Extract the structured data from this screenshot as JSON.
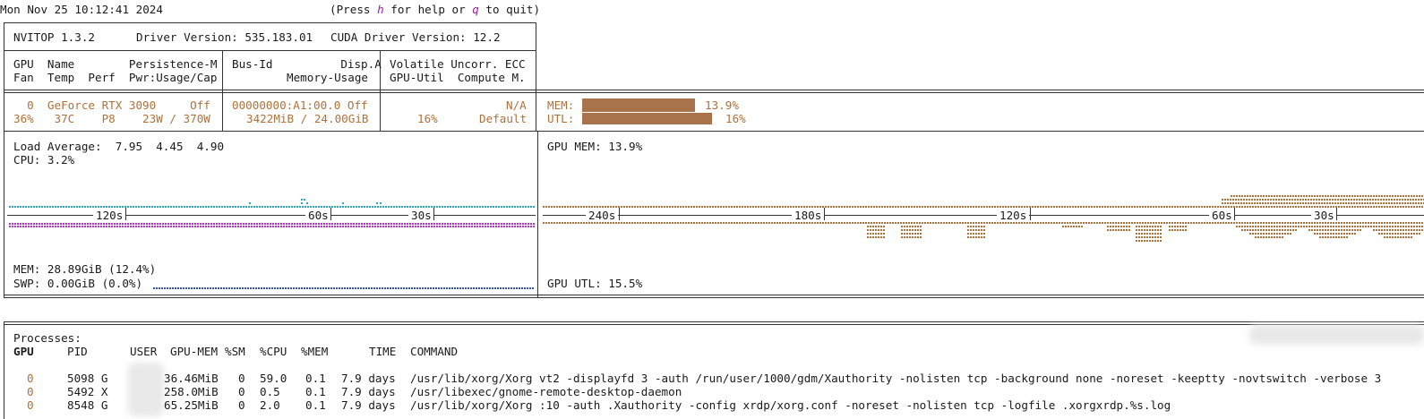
{
  "clock": "Mon Nov 25 10:12:41 2024",
  "help": {
    "pre": "(Press ",
    "h": "h",
    "mid": " for help or ",
    "q": "q",
    "post": " to quit)"
  },
  "header": {
    "app": "NVITOP 1.3.2",
    "driver": "Driver Version: 535.183.01",
    "cuda": "CUDA Driver Version: 12.2"
  },
  "cols": {
    "c1r1": "GPU  Name        Persistence-M",
    "c1r2": "Fan  Temp  Perf  Pwr:Usage/Cap",
    "c2r1": "Bus-Id          Disp.A",
    "c2r2": "Memory-Usage",
    "c3r1": "Volatile Uncorr. ECC",
    "c3r2": "GPU-Util  Compute M."
  },
  "gpu": {
    "r1c1": "  0  GeForce RTX 3090     Off",
    "r1c2": "00000000:A1:00.0 Off",
    "r1c3": "N/A",
    "r2c1": "36%   37C    P8    23W / 370W",
    "r2c2": "3422MiB / 24.00GiB",
    "r2c3a": "16%",
    "r2c3b": "Default",
    "mem_label": "MEM:",
    "mem_value": "13.9%",
    "mem_fraction": 0.139,
    "utl_label": "UTL:",
    "utl_value": "16%",
    "utl_fraction": 0.16
  },
  "host": {
    "load": "Load Average:  7.95  4.45  4.90",
    "cpu": "CPU: 3.2%",
    "mem": "MEM: 28.89GiB (12.4%)",
    "swp": "SWP: 0.00GiB (0.0%)",
    "ticks": [
      "120s",
      "60s",
      "30s"
    ]
  },
  "gpu_graph": {
    "mem": "GPU MEM: 13.9%",
    "utl": "GPU UTL: 15.5%",
    "ticks": [
      "240s",
      "180s",
      "120s",
      "60s",
      "30s"
    ]
  },
  "processes": {
    "title": "Processes:",
    "headers": {
      "gpu": "GPU",
      "pid": "PID",
      "user": "USER",
      "gpumem": "GPU-MEM",
      "sm": "%SM",
      "cpu": "%CPU",
      "mem": "%MEM",
      "time": "TIME",
      "command": "COMMAND"
    },
    "rows": [
      {
        "gpu": "0",
        "pid": "5098 G",
        "gpumem": "36.46MiB",
        "sm": "0",
        "cpu": "59.0",
        "mem": "0.1",
        "time": "7.9 days",
        "command": "/usr/lib/xorg/Xorg vt2 -displayfd 3 -auth /run/user/1000/gdm/Xauthority -nolisten tcp -background none -noreset -keeptty -novtswitch -verbose 3"
      },
      {
        "gpu": "0",
        "pid": "5492 X",
        "gpumem": "258.0MiB",
        "sm": "0",
        "cpu": "0.5",
        "mem": "0.1",
        "time": "7.9 days",
        "command": "/usr/libexec/gnome-remote-desktop-daemon"
      },
      {
        "gpu": "0",
        "pid": "8548 G",
        "gpumem": "65.25MiB",
        "sm": "0",
        "cpu": "2.0",
        "mem": "0.1",
        "time": "7.9 days",
        "command": "/usr/lib/xorg/Xorg :10 -auth .Xauthority -config xrdp/xorg.conf -noreset -nolisten tcp -logfile .xorgxrdp.%s.log"
      }
    ]
  },
  "colors": {
    "accent": "#b0703a",
    "cyan": "#2aa8b8",
    "magenta": "#b030c8",
    "blue": "#3050b0",
    "help_key": "#a020a0"
  }
}
